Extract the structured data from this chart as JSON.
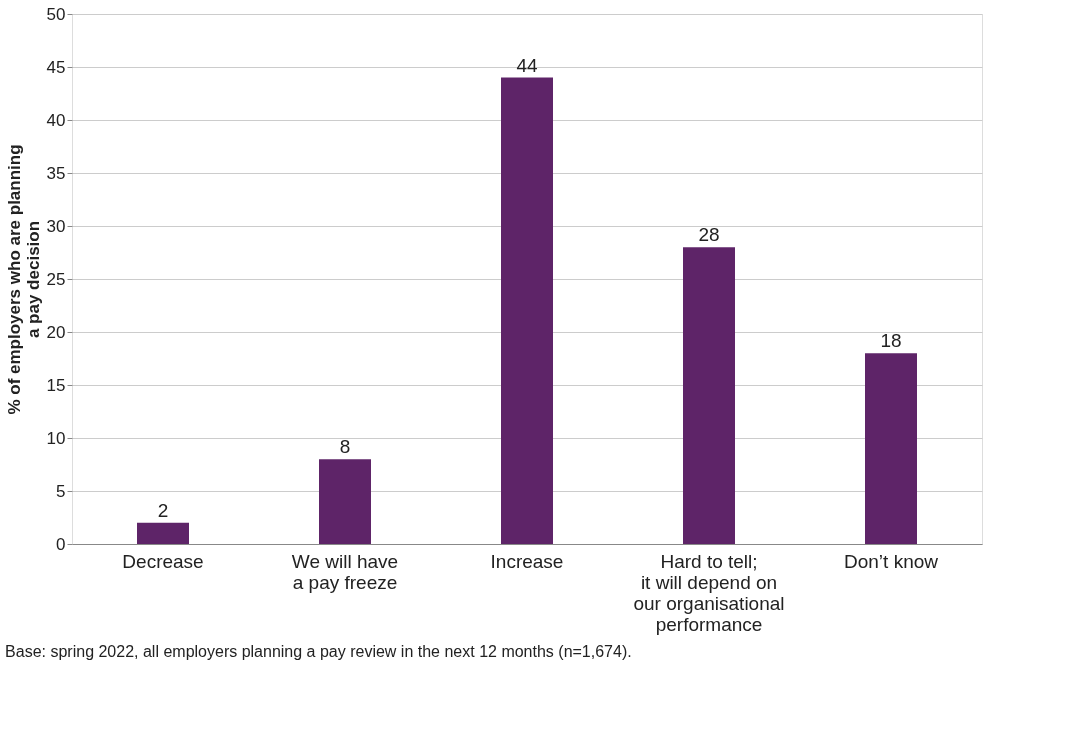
{
  "chart_data": {
    "type": "bar",
    "ylabel": "% of employers who are planning\na pay decision",
    "categories": [
      "Decrease",
      "We will have\na pay freeze",
      "Increase",
      "Hard to tell;\nit will depend on\nour organisational\nperformance",
      "Don’t know"
    ],
    "values": [
      2,
      8,
      44,
      28,
      18
    ],
    "color": "#5e2468",
    "data_labels": true,
    "ylim": [
      0,
      50
    ],
    "yticks": [
      0,
      5,
      10,
      15,
      20,
      25,
      30,
      35,
      40,
      45,
      50
    ],
    "grid": "y",
    "annotations": [
      "Base: spring 2022, all employers planning a pay review in the next 12 months (n=1,674)."
    ]
  }
}
